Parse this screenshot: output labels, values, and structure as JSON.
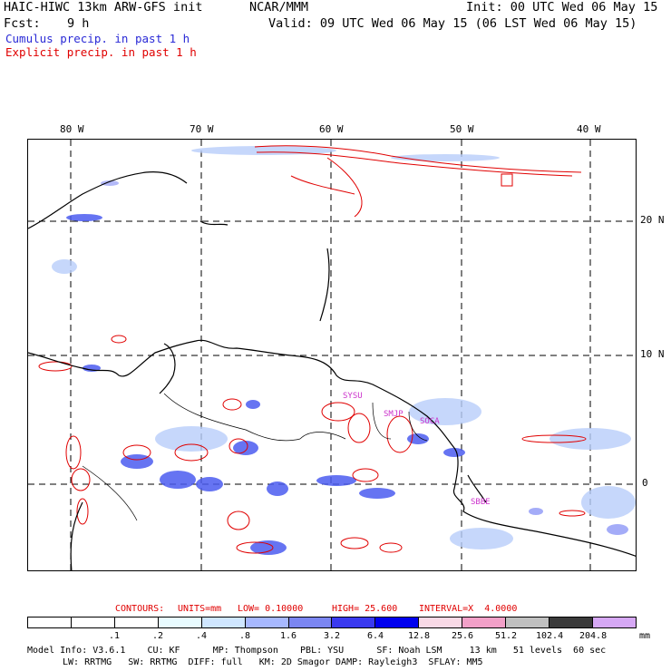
{
  "header": {
    "model": "HAIC-HIWC 13km ARW-GFS init",
    "org": "NCAR/MMM",
    "init": "Init: 00 UTC Wed 06 May 15",
    "fcst_label": "Fcst:",
    "fcst_value": "9 h",
    "valid": "Valid: 09 UTC Wed 06 May 15 (06 LST Wed 06 May 15)",
    "legend_cumulus": "Cumulus precip. in past 1 h",
    "legend_explicit": "Explicit precip. in past 1 h"
  },
  "map": {
    "lon_labels": [
      "80 W",
      "70 W",
      "60 W",
      "50 W",
      "40 W"
    ],
    "lat_labels": [
      "20 N",
      "10 N",
      "0"
    ],
    "stations": [
      "SYSU",
      "SMJP",
      "SOCA",
      "SBBE"
    ],
    "colors": {
      "coast": "#000000",
      "cumulus": "#3a4fe0",
      "explicit": "#e00000",
      "station": "#cc33cc"
    }
  },
  "contours": {
    "label": "CONTOURS:",
    "units": "UNITS=mm",
    "low": "LOW= 0.10000",
    "high": "HIGH= 25.600",
    "interval": "INTERVAL=X  4.0000"
  },
  "colorbar": {
    "colors": [
      "#ffffff",
      "#ffffff",
      "#ffffff",
      "#e8fbff",
      "#cfe6ff",
      "#a7b8ff",
      "#7b86f2",
      "#3a3af0",
      "#0000ee",
      "#f8d9e6",
      "#f2a0c8",
      "#c0c0c0",
      "#3a3a3a",
      "#d6a8f5"
    ],
    "ticks": [
      ".1",
      ".2",
      ".4",
      ".8",
      "1.6",
      "3.2",
      "6.4",
      "12.8",
      "25.6",
      "51.2",
      "102.4",
      "204.8"
    ],
    "unit": "mm"
  },
  "footer": {
    "line1": "Model Info: V3.6.1    CU: KF      MP: Thompson    PBL: YSU      SF: Noah LSM     13 km   51 levels  60 sec",
    "line2": "LW: RRTMG   SW: RRTMG  DIFF: full   KM: 2D Smagor DAMP: Rayleigh3  SFLAY: MM5"
  }
}
